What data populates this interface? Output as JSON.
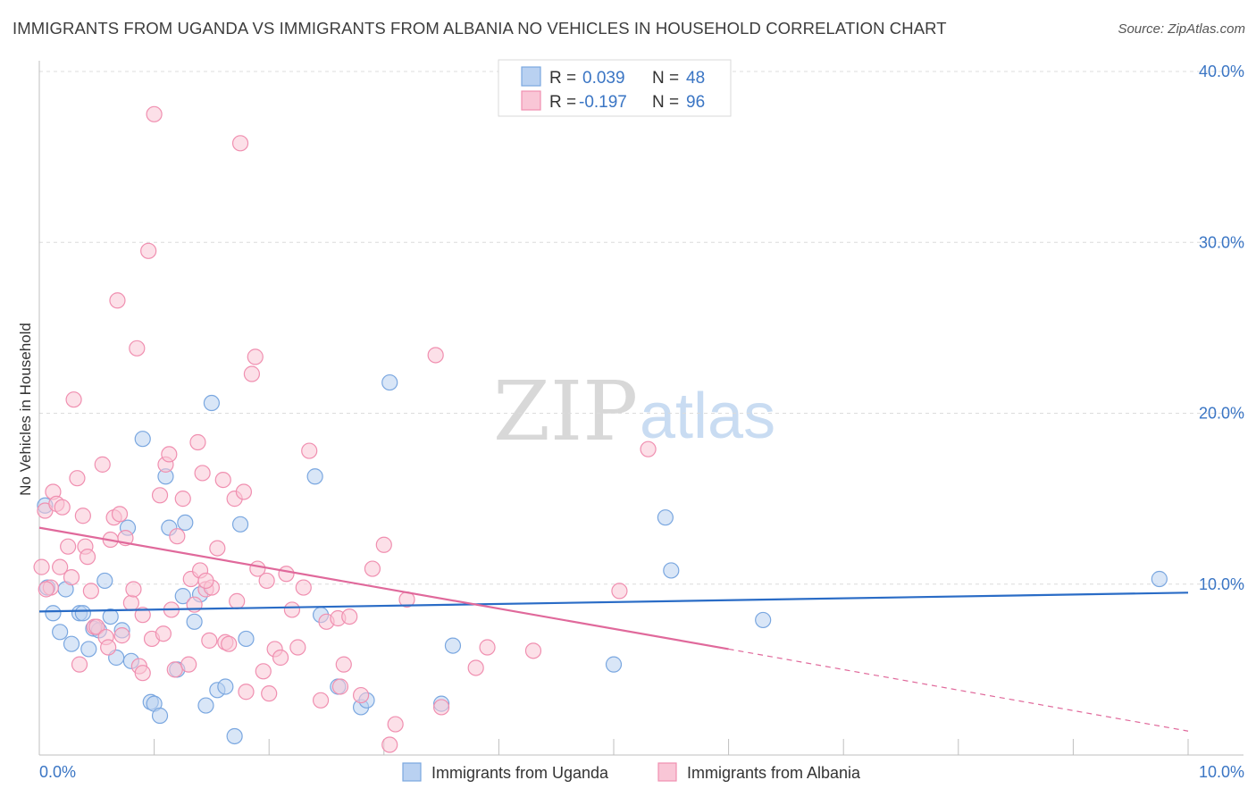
{
  "title": "IMMIGRANTS FROM UGANDA VS IMMIGRANTS FROM ALBANIA NO VEHICLES IN HOUSEHOLD CORRELATION CHART",
  "source": "Source: ZipAtlas.com",
  "watermark": {
    "zip": "ZIP",
    "atlas": "atlas"
  },
  "chart_data": {
    "type": "scatter",
    "ylabel": "No Vehicles in Household",
    "xlim": [
      0,
      10
    ],
    "ylim": [
      0,
      40
    ],
    "x_tick_labels": [
      {
        "value": 0,
        "label": "0.0%"
      },
      {
        "value": 10,
        "label": "10.0%"
      }
    ],
    "y_tick_labels": [
      {
        "value": 10,
        "label": "10.0%"
      },
      {
        "value": 20,
        "label": "20.0%"
      },
      {
        "value": 30,
        "label": "30.0%"
      },
      {
        "value": 40,
        "label": "40.0%"
      }
    ],
    "grid": "horizontal dashed",
    "legend_placement": "top-center",
    "series": [
      {
        "name": "Immigrants from Uganda",
        "color": "#7aa7e0",
        "fill": "#b9d1f1",
        "line_color": "#2a6cc6",
        "r_label": "R =",
        "r_value": "0.039",
        "n_label": "N =",
        "n_value": "48",
        "trend": {
          "x0": 0,
          "y0": 8.4,
          "x1": 10,
          "y1": 9.5
        },
        "points": [
          [
            0.05,
            14.6
          ],
          [
            0.07,
            9.8
          ],
          [
            0.12,
            8.3
          ],
          [
            0.18,
            7.2
          ],
          [
            0.23,
            9.7
          ],
          [
            0.28,
            6.5
          ],
          [
            0.35,
            8.3
          ],
          [
            0.38,
            8.3
          ],
          [
            0.43,
            6.2
          ],
          [
            0.47,
            7.4
          ],
          [
            0.52,
            7.3
          ],
          [
            0.57,
            10.2
          ],
          [
            0.62,
            8.1
          ],
          [
            0.67,
            5.7
          ],
          [
            0.72,
            7.3
          ],
          [
            0.77,
            13.3
          ],
          [
            0.8,
            5.5
          ],
          [
            0.9,
            18.5
          ],
          [
            0.97,
            3.1
          ],
          [
            1.0,
            3.0
          ],
          [
            1.05,
            2.3
          ],
          [
            1.1,
            16.3
          ],
          [
            1.13,
            13.3
          ],
          [
            1.2,
            5.0
          ],
          [
            1.25,
            9.3
          ],
          [
            1.27,
            13.6
          ],
          [
            1.35,
            7.8
          ],
          [
            1.4,
            9.4
          ],
          [
            1.45,
            2.9
          ],
          [
            1.5,
            20.6
          ],
          [
            1.55,
            3.8
          ],
          [
            1.62,
            4.0
          ],
          [
            1.7,
            1.1
          ],
          [
            1.75,
            13.5
          ],
          [
            1.8,
            6.8
          ],
          [
            2.4,
            16.3
          ],
          [
            2.45,
            8.2
          ],
          [
            2.6,
            4.0
          ],
          [
            2.8,
            2.8
          ],
          [
            2.85,
            3.2
          ],
          [
            3.05,
            21.8
          ],
          [
            3.5,
            3.0
          ],
          [
            3.6,
            6.4
          ],
          [
            5.0,
            5.3
          ],
          [
            5.45,
            13.9
          ],
          [
            5.5,
            10.8
          ],
          [
            6.3,
            7.9
          ],
          [
            9.75,
            10.3
          ]
        ]
      },
      {
        "name": "Immigrants from Albania",
        "color": "#f08fb0",
        "fill": "#f9c6d6",
        "line_color": "#e0699b",
        "r_label": "R =",
        "r_value": "-0.197",
        "n_label": "N =",
        "n_value": "96",
        "trend": {
          "x0": 0,
          "y0": 13.3,
          "x1": 6.0,
          "y1": 6.2
        },
        "trend_dashed": {
          "x0": 6.0,
          "y0": 6.2,
          "x1": 10,
          "y1": 1.4
        },
        "points": [
          [
            0.02,
            11.0
          ],
          [
            0.05,
            14.3
          ],
          [
            0.1,
            9.8
          ],
          [
            0.12,
            15.4
          ],
          [
            0.15,
            14.7
          ],
          [
            0.18,
            11.0
          ],
          [
            0.2,
            14.5
          ],
          [
            0.25,
            12.2
          ],
          [
            0.28,
            10.4
          ],
          [
            0.3,
            20.8
          ],
          [
            0.33,
            16.2
          ],
          [
            0.35,
            5.3
          ],
          [
            0.38,
            14.0
          ],
          [
            0.4,
            12.2
          ],
          [
            0.42,
            11.6
          ],
          [
            0.45,
            9.6
          ],
          [
            0.48,
            7.5
          ],
          [
            0.5,
            7.5
          ],
          [
            0.55,
            17.0
          ],
          [
            0.58,
            6.9
          ],
          [
            0.6,
            6.3
          ],
          [
            0.62,
            12.6
          ],
          [
            0.65,
            13.9
          ],
          [
            0.68,
            26.6
          ],
          [
            0.7,
            14.1
          ],
          [
            0.72,
            7.0
          ],
          [
            0.75,
            12.7
          ],
          [
            0.8,
            8.9
          ],
          [
            0.82,
            9.7
          ],
          [
            0.85,
            23.8
          ],
          [
            0.87,
            5.2
          ],
          [
            0.9,
            8.2
          ],
          [
            0.95,
            29.5
          ],
          [
            0.98,
            6.8
          ],
          [
            1.0,
            37.5
          ],
          [
            1.05,
            15.2
          ],
          [
            1.08,
            7.1
          ],
          [
            1.1,
            17.0
          ],
          [
            1.13,
            17.6
          ],
          [
            1.15,
            8.5
          ],
          [
            1.18,
            5.0
          ],
          [
            1.2,
            12.8
          ],
          [
            1.25,
            15.0
          ],
          [
            1.3,
            5.3
          ],
          [
            1.32,
            10.3
          ],
          [
            1.35,
            8.8
          ],
          [
            1.38,
            18.3
          ],
          [
            1.4,
            10.8
          ],
          [
            1.42,
            16.5
          ],
          [
            1.45,
            9.7
          ],
          [
            1.48,
            6.7
          ],
          [
            1.5,
            9.8
          ],
          [
            1.55,
            12.1
          ],
          [
            1.6,
            16.1
          ],
          [
            1.62,
            6.6
          ],
          [
            1.65,
            6.5
          ],
          [
            1.7,
            15.0
          ],
          [
            1.72,
            9.0
          ],
          [
            1.75,
            35.8
          ],
          [
            1.78,
            15.4
          ],
          [
            1.8,
            3.7
          ],
          [
            1.85,
            22.3
          ],
          [
            1.88,
            23.3
          ],
          [
            1.9,
            10.9
          ],
          [
            1.95,
            4.9
          ],
          [
            1.98,
            10.2
          ],
          [
            2.0,
            3.6
          ],
          [
            2.05,
            6.2
          ],
          [
            2.1,
            5.7
          ],
          [
            2.15,
            10.6
          ],
          [
            2.2,
            8.5
          ],
          [
            2.25,
            6.3
          ],
          [
            2.3,
            9.8
          ],
          [
            2.35,
            17.8
          ],
          [
            2.45,
            3.2
          ],
          [
            2.5,
            7.8
          ],
          [
            2.6,
            8.0
          ],
          [
            2.62,
            4.0
          ],
          [
            2.65,
            5.3
          ],
          [
            2.7,
            8.1
          ],
          [
            2.8,
            3.5
          ],
          [
            2.9,
            10.9
          ],
          [
            3.0,
            12.3
          ],
          [
            3.05,
            0.6
          ],
          [
            3.1,
            1.8
          ],
          [
            3.2,
            9.1
          ],
          [
            3.45,
            23.4
          ],
          [
            3.5,
            2.8
          ],
          [
            3.8,
            5.1
          ],
          [
            3.9,
            6.3
          ],
          [
            4.3,
            6.1
          ],
          [
            5.05,
            9.6
          ],
          [
            5.3,
            17.9
          ],
          [
            0.06,
            9.7
          ],
          [
            0.9,
            4.8
          ],
          [
            1.45,
            10.2
          ]
        ]
      }
    ]
  }
}
